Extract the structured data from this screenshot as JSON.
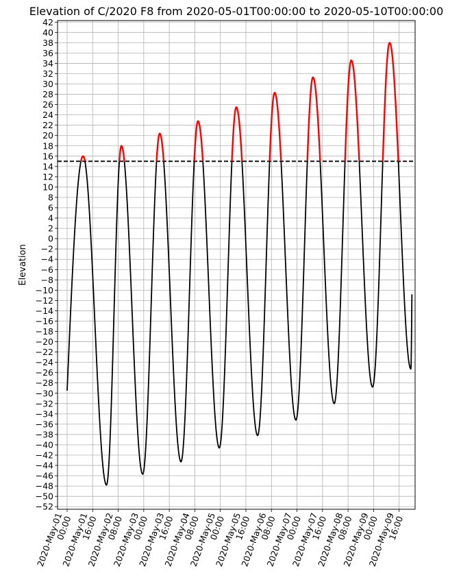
{
  "chart_data": {
    "type": "line",
    "title": "Elevation of C/2020 F8 from 2020-05-01T00:00:00 to 2020-05-10T00:00:00",
    "xlabel": "",
    "ylabel": "Elevation",
    "ylim": [
      -52.5,
      42.3
    ],
    "yticks": [
      -52,
      -50,
      -48,
      -46,
      -44,
      -42,
      -40,
      -38,
      -36,
      -34,
      -32,
      -30,
      -28,
      -26,
      -24,
      -22,
      -20,
      -18,
      -16,
      -14,
      -12,
      -10,
      -8,
      -6,
      -4,
      -2,
      0,
      2,
      4,
      6,
      8,
      10,
      12,
      14,
      16,
      18,
      20,
      22,
      24,
      26,
      28,
      30,
      32,
      34,
      36,
      38,
      40,
      42
    ],
    "xlim": [
      "2020-04-30 18:00",
      "2020-05-10 02:00"
    ],
    "xtick_labels": [
      "2020-May-01\n00:00",
      "2020-May-01\n16:00",
      "2020-May-02\n08:00",
      "2020-May-03\n00:00",
      "2020-May-03\n16:00",
      "2020-May-04\n08:00",
      "2020-May-05\n00:00",
      "2020-May-05\n16:00",
      "2020-May-06\n08:00",
      "2020-May-07\n00:00",
      "2020-May-07\n16:00",
      "2020-May-08\n08:00",
      "2020-May-09\n00:00",
      "2020-May-09\n16:00"
    ],
    "grid": true,
    "threshold": {
      "y": 15,
      "style": "dashed",
      "color": "#000000"
    },
    "series": [
      {
        "color": "#000000",
        "above_threshold_color": "#ff0000",
        "x_start": "2020-05-01 00:00",
        "x_end": "2020-05-10 00:00",
        "points": [
          {
            "x": "2020-05-01 00:00",
            "y": -29.5
          },
          {
            "x": "2020-05-01 10:00",
            "y": 16.0
          },
          {
            "x": "2020-05-01 24:40",
            "y": -47.8
          },
          {
            "x": "2020-05-02 10:00",
            "y": 18.0
          },
          {
            "x": "2020-05-02 23:20",
            "y": -45.7
          },
          {
            "x": "2020-05-03 10:00",
            "y": 20.4
          },
          {
            "x": "2020-05-03 23:20",
            "y": -43.3
          },
          {
            "x": "2020-05-04 10:00",
            "y": 22.8
          },
          {
            "x": "2020-05-04 23:20",
            "y": -40.6
          },
          {
            "x": "2020-05-05 10:00",
            "y": 25.5
          },
          {
            "x": "2020-05-05 23:20",
            "y": -38.2
          },
          {
            "x": "2020-05-06 10:00",
            "y": 28.3
          },
          {
            "x": "2020-05-06 23:20",
            "y": -35.2
          },
          {
            "x": "2020-05-07 10:00",
            "y": 31.3
          },
          {
            "x": "2020-05-07 23:20",
            "y": -32.0
          },
          {
            "x": "2020-05-08 10:00",
            "y": 34.6
          },
          {
            "x": "2020-05-08 23:20",
            "y": -28.8
          },
          {
            "x": "2020-05-09 10:00",
            "y": 38.0
          },
          {
            "x": "2020-05-09 23:20",
            "y": -25.3
          },
          {
            "x": "2020-05-10 00:00",
            "y": -10.8
          }
        ]
      }
    ]
  }
}
